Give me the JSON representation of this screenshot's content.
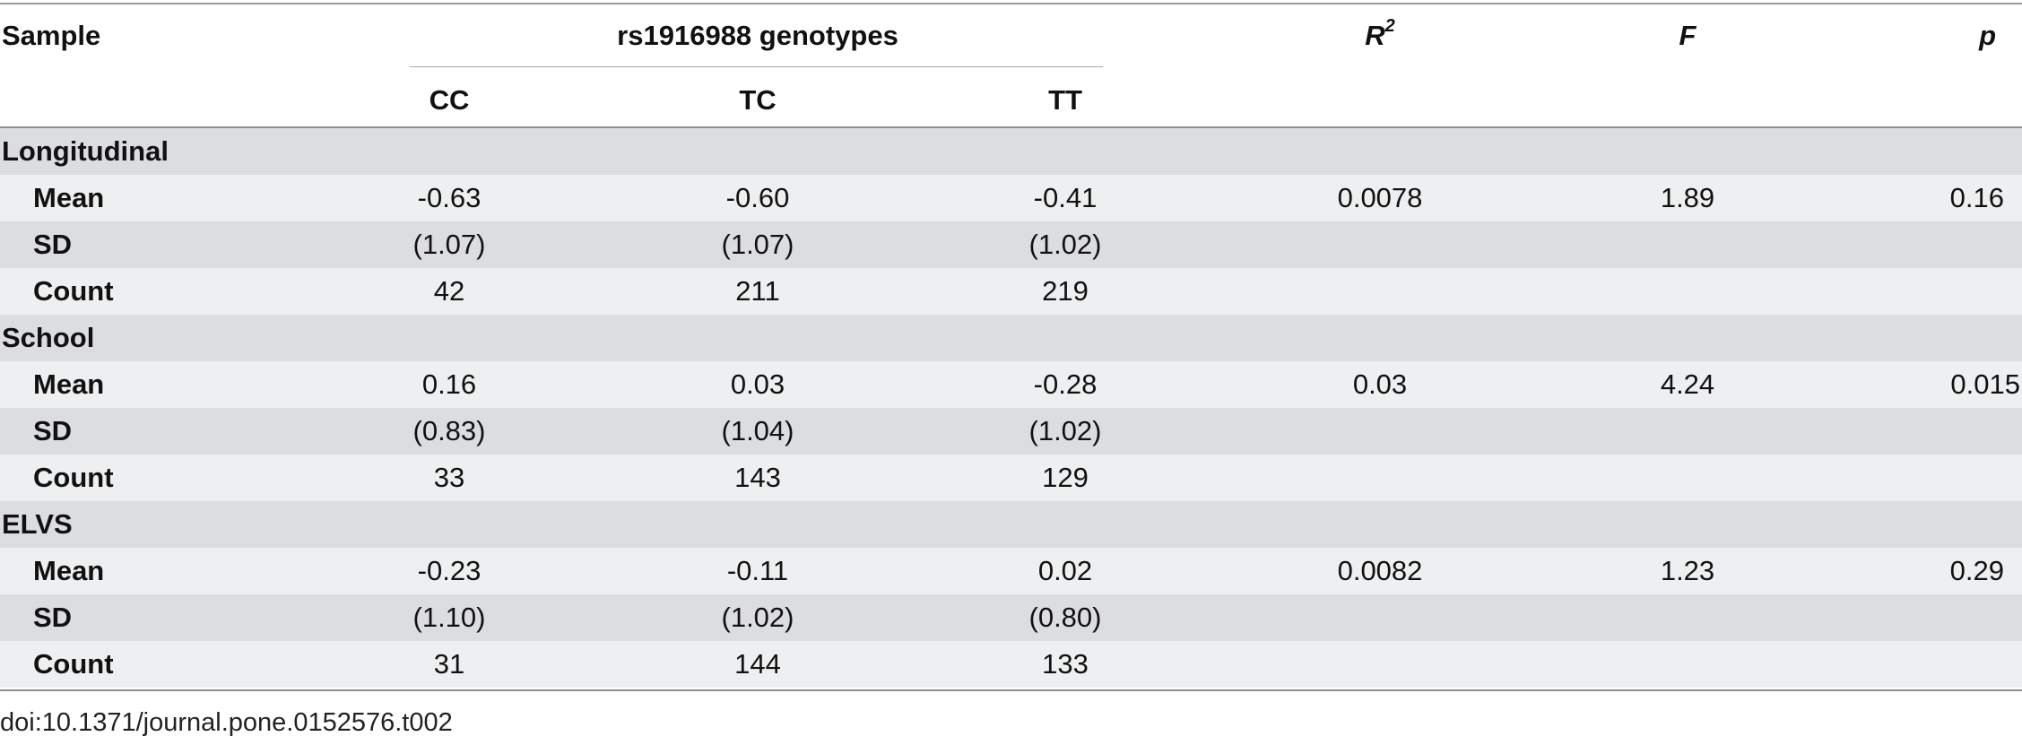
{
  "header": {
    "sample": "Sample",
    "genotypes": "rs1916988 genotypes",
    "cc": "CC",
    "tc": "TC",
    "tt": "TT",
    "r2_base": "R",
    "r2_sup": "2",
    "f": "F",
    "p": "p"
  },
  "groups": [
    {
      "name": "Longitudinal",
      "rows": [
        {
          "label": "Mean",
          "cc": "-0.63",
          "tc": "-0.60",
          "tt": "-0.41",
          "r2": "0.0078",
          "f": "1.89",
          "p": "0.16"
        },
        {
          "label": "SD",
          "cc": "(1.07)",
          "tc": "(1.07)",
          "tt": "(1.02)",
          "r2": "",
          "f": "",
          "p": ""
        },
        {
          "label": "Count",
          "cc": "42",
          "tc": "211",
          "tt": "219",
          "r2": "",
          "f": "",
          "p": ""
        }
      ]
    },
    {
      "name": "School",
      "rows": [
        {
          "label": "Mean",
          "cc": "0.16",
          "tc": "0.03",
          "tt": "-0.28",
          "r2": "0.03",
          "f": "4.24",
          "p": "0.015"
        },
        {
          "label": "SD",
          "cc": "(0.83)",
          "tc": "(1.04)",
          "tt": "(1.02)",
          "r2": "",
          "f": "",
          "p": ""
        },
        {
          "label": "Count",
          "cc": "33",
          "tc": "143",
          "tt": "129",
          "r2": "",
          "f": "",
          "p": ""
        }
      ]
    },
    {
      "name": "ELVS",
      "rows": [
        {
          "label": "Mean",
          "cc": "-0.23",
          "tc": "-0.11",
          "tt": "0.02",
          "r2": "0.0082",
          "f": "1.23",
          "p": "0.29"
        },
        {
          "label": "SD",
          "cc": "(1.10)",
          "tc": "(1.02)",
          "tt": "(0.80)",
          "r2": "",
          "f": "",
          "p": ""
        },
        {
          "label": "Count",
          "cc": "31",
          "tc": "144",
          "tt": "133",
          "r2": "",
          "f": "",
          "p": ""
        }
      ]
    }
  ],
  "footer": {
    "doi": "doi:10.1371/journal.pone.0152576.t002"
  },
  "colors": {
    "shade_dark": "#dcdde0",
    "shade_light": "#eeeff0",
    "rule": "#8e8e8e"
  }
}
